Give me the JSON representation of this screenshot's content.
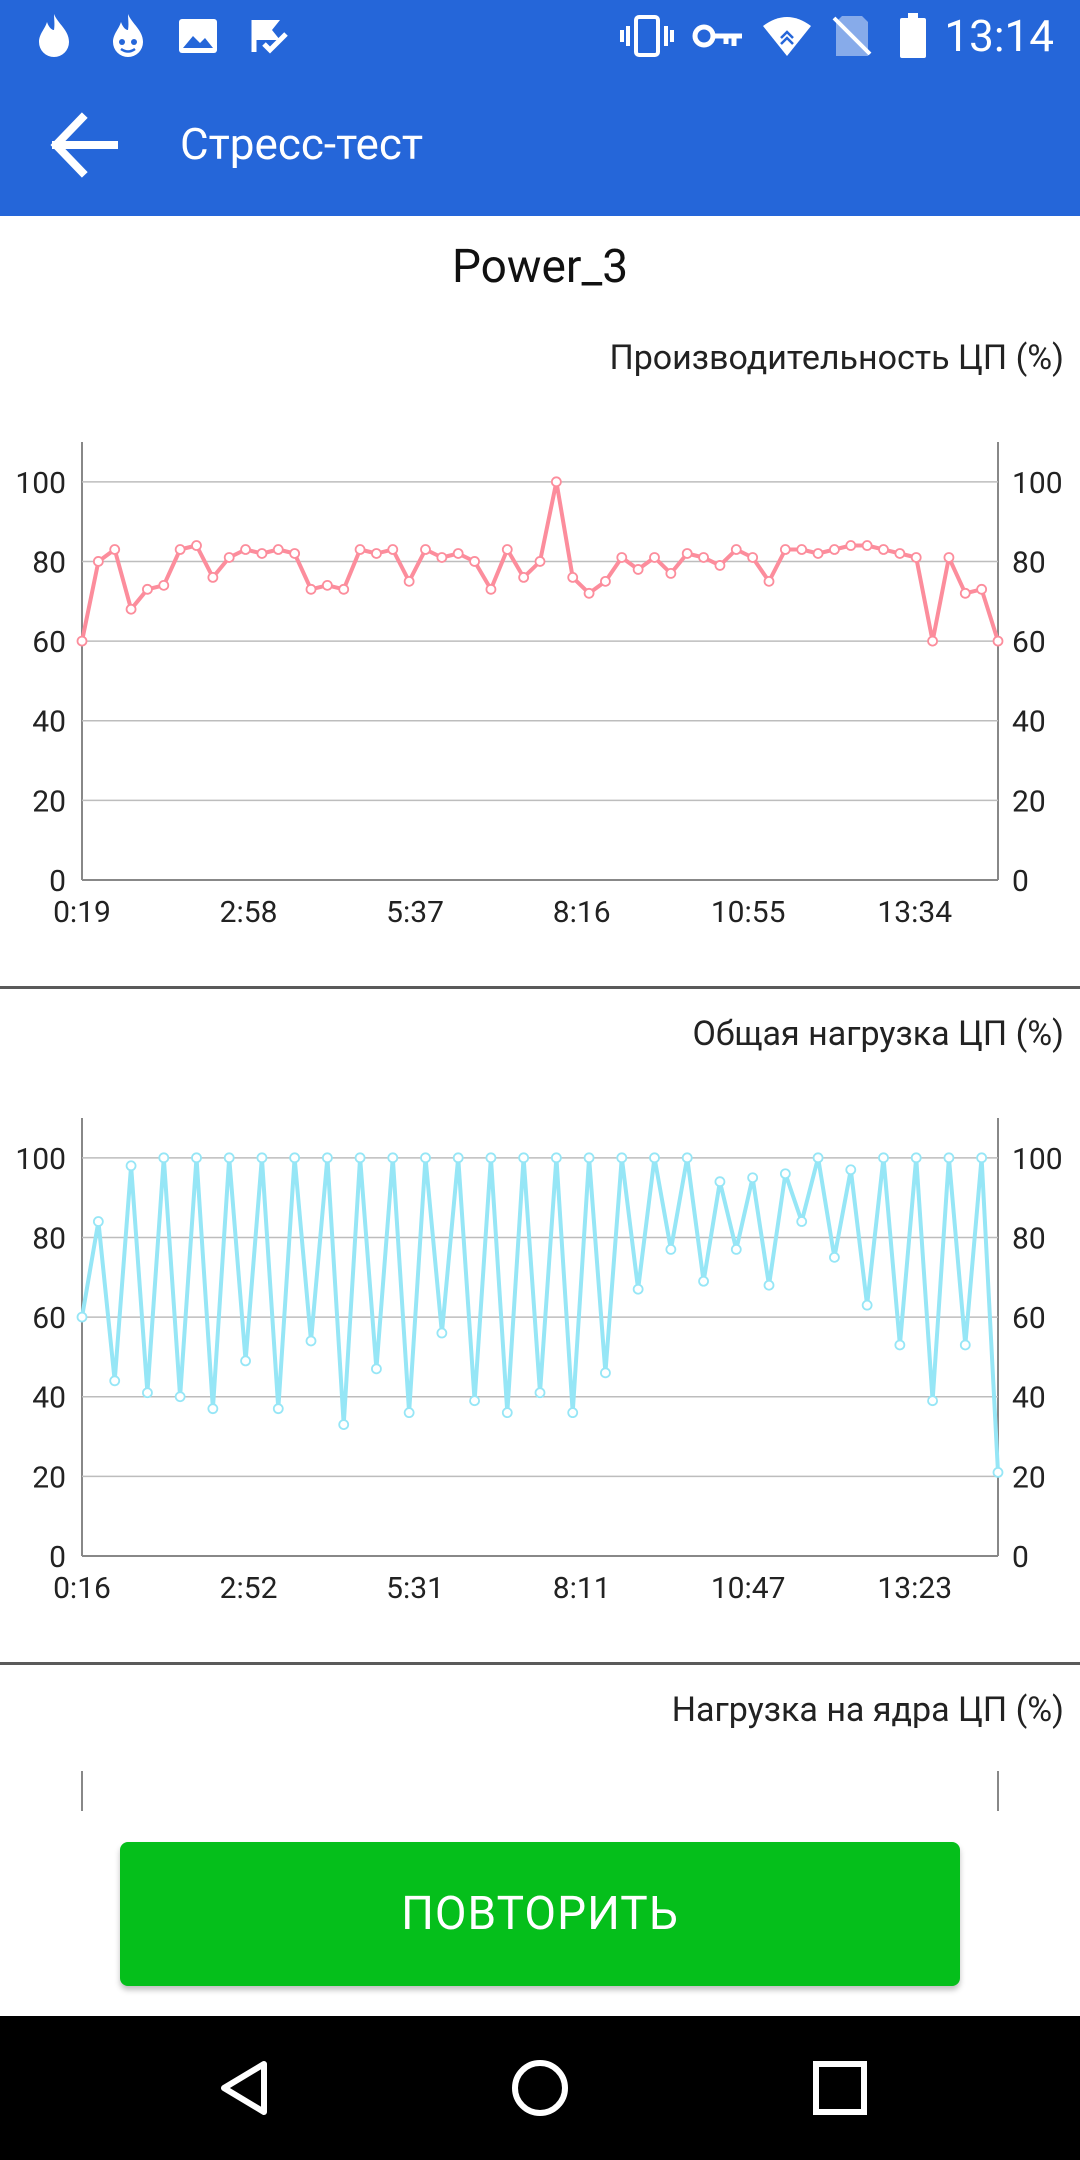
{
  "status_bar": {
    "time": "13:14",
    "left_icons": [
      "fire-icon",
      "hot-face-icon",
      "image-icon",
      "check-flag-icon"
    ],
    "right_icons": [
      "vibrate-icon",
      "vpn-key-icon",
      "wifi-icon",
      "no-sim-icon",
      "battery-icon"
    ]
  },
  "app_bar": {
    "title": "Стресс-тест",
    "back_icon": "arrow-left-icon"
  },
  "test_name": "Power_3",
  "charts": [
    {
      "title": "Производительность ЦП (%)",
      "legend": "Производительность ЦП (%)",
      "color": "#fc8d9c",
      "y_ticks": [
        "0",
        "20",
        "40",
        "60",
        "80",
        "100"
      ],
      "x_ticks": [
        "0:19",
        "2:58",
        "5:37",
        "8:16",
        "10:55",
        "13:34"
      ]
    },
    {
      "title": "Общая нагрузка ЦП (%)",
      "legend": "Общая нагрузка ЦП (%)",
      "color": "#96e6f6",
      "y_ticks": [
        "0",
        "20",
        "40",
        "60",
        "80",
        "100"
      ],
      "x_ticks": [
        "0:16",
        "2:52",
        "5:31",
        "8:11",
        "10:47",
        "13:23"
      ]
    },
    {
      "title": "Нагрузка на ядра ЦП (%)"
    }
  ],
  "chart_data": [
    {
      "type": "line",
      "title": "Производительность ЦП (%)",
      "series": [
        {
          "name": "Производительность ЦП (%)",
          "color": "#fc8d9c",
          "values": [
            60,
            80,
            83,
            68,
            73,
            74,
            83,
            84,
            76,
            81,
            83,
            82,
            83,
            82,
            73,
            74,
            73,
            83,
            82,
            83,
            75,
            83,
            81,
            82,
            80,
            73,
            83,
            76,
            80,
            100,
            76,
            72,
            75,
            81,
            78,
            81,
            77,
            82,
            81,
            79,
            83,
            81,
            75,
            83,
            83,
            82,
            83,
            84,
            84,
            83,
            82,
            81,
            60,
            81,
            72,
            73,
            60
          ]
        }
      ],
      "x_tick_labels": [
        "0:19",
        "2:58",
        "5:37",
        "8:16",
        "10:55",
        "13:34"
      ],
      "ylim": [
        0,
        110
      ],
      "y_ticks": [
        0,
        20,
        40,
        60,
        80,
        100
      ],
      "grid": true,
      "legend_position": "bottom-left"
    },
    {
      "type": "line",
      "title": "Общая нагрузка ЦП (%)",
      "series": [
        {
          "name": "Общая нагрузка ЦП (%)",
          "color": "#96e6f6",
          "values": [
            60,
            84,
            44,
            98,
            41,
            100,
            40,
            100,
            37,
            100,
            49,
            100,
            37,
            100,
            54,
            100,
            33,
            100,
            47,
            100,
            36,
            100,
            56,
            100,
            39,
            100,
            36,
            100,
            41,
            100,
            36,
            100,
            46,
            100,
            67,
            100,
            77,
            100,
            69,
            94,
            77,
            95,
            68,
            96,
            84,
            100,
            75,
            97,
            63,
            100,
            53,
            100,
            39,
            100,
            53,
            100,
            21
          ]
        }
      ],
      "x_tick_labels": [
        "0:16",
        "2:52",
        "5:31",
        "8:11",
        "10:47",
        "13:23"
      ],
      "ylim": [
        0,
        110
      ],
      "y_ticks": [
        0,
        20,
        40,
        60,
        80,
        100
      ],
      "grid": true,
      "legend_position": "bottom-left"
    }
  ],
  "action_button": {
    "label": "ПОВТОРИТЬ"
  },
  "nav_bar": {
    "icons": [
      "back-triangle-icon",
      "home-circle-icon",
      "recents-square-icon"
    ]
  }
}
